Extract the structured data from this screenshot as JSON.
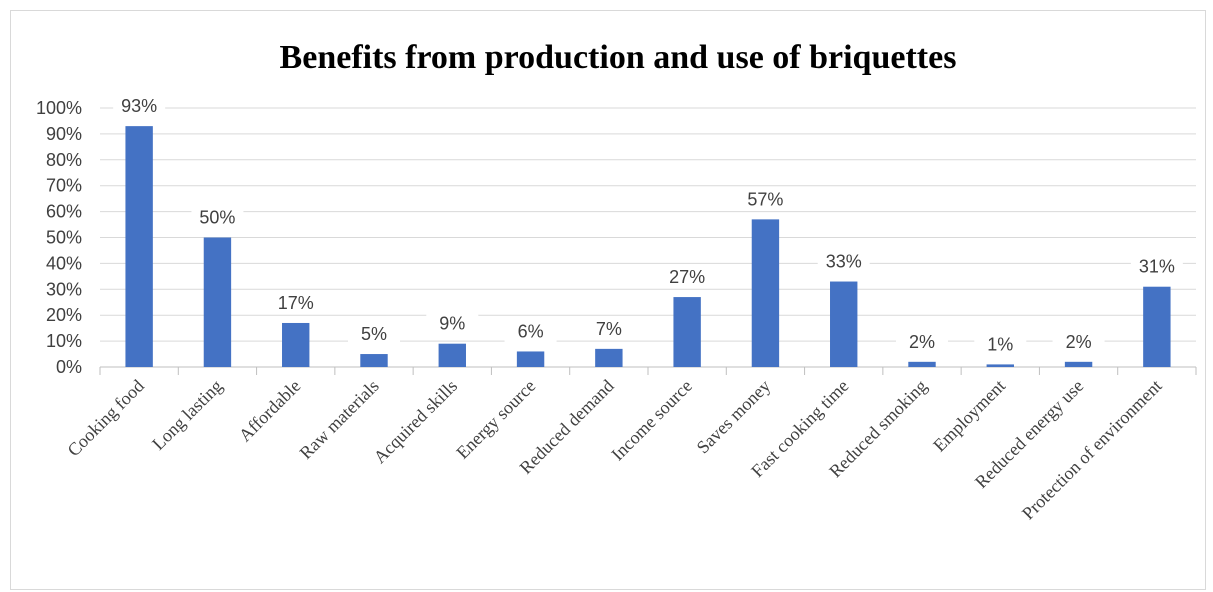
{
  "chart_data": {
    "type": "bar",
    "title": "Benefits from production and use of briquettes",
    "xlabel": "",
    "ylabel": "",
    "categories": [
      "Cooking food",
      "Long lasting",
      "Affordable",
      "Raw materials",
      "Acquired skills",
      "Energy source",
      "Reduced demand",
      "Income source",
      "Saves money",
      "Fast cooking time",
      "Reduced smoking",
      "Employment",
      "Reduced energy use",
      "Protection of environment"
    ],
    "values": [
      93,
      50,
      17,
      5,
      9,
      6,
      7,
      27,
      57,
      33,
      2,
      1,
      2,
      31
    ],
    "data_labels": [
      "93%",
      "50%",
      "17%",
      "5%",
      "9%",
      "6%",
      "7%",
      "27%",
      "57%",
      "33%",
      "2%",
      "1%",
      "2%",
      "31%"
    ],
    "ylim": [
      0,
      100
    ],
    "yticks": [
      "0%",
      "10%",
      "20%",
      "30%",
      "40%",
      "50%",
      "60%",
      "70%",
      "80%",
      "90%",
      "100%"
    ],
    "grid": true,
    "legend": "none",
    "colors": {
      "bar": "#4472C4",
      "grid": "#d9d9d9",
      "axis": "#bfbfbf",
      "text": "#404040"
    }
  }
}
